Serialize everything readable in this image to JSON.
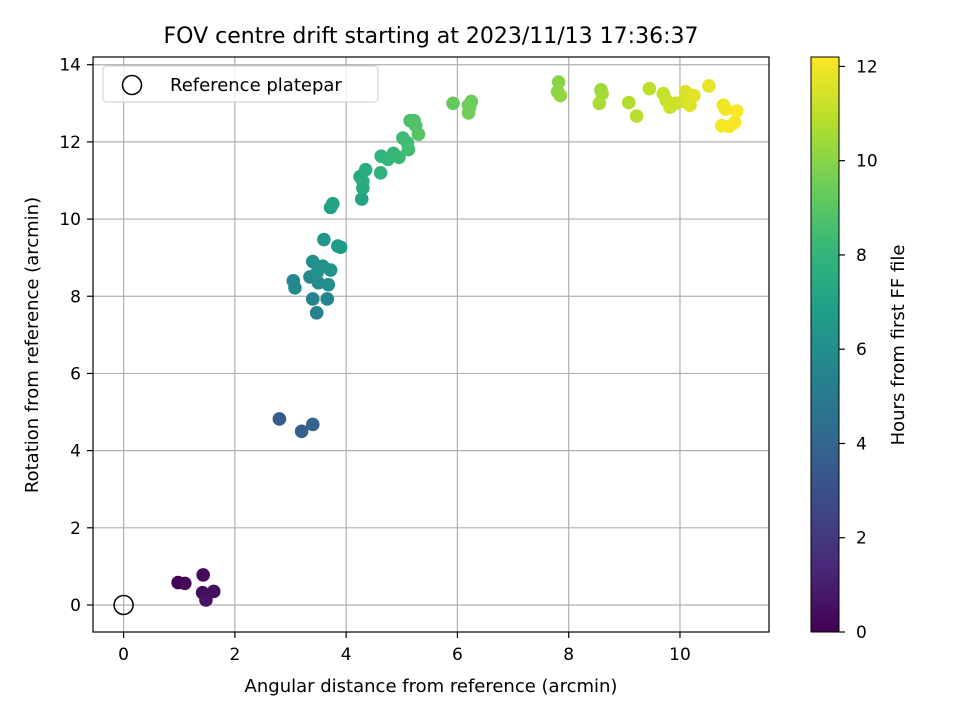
{
  "chart_data": {
    "type": "scatter",
    "title": "FOV centre drift starting at 2023/11/13 17:36:37",
    "xlabel": "Angular distance from reference (arcmin)",
    "ylabel": "Rotation from reference (arcmin)",
    "xlim": [
      -0.55,
      11.6
    ],
    "ylim": [
      -0.7,
      14.2
    ],
    "x_ticks": [
      0,
      2,
      4,
      6,
      8,
      10
    ],
    "y_ticks": [
      0,
      2,
      4,
      6,
      8,
      10,
      12,
      14
    ],
    "grid": true,
    "legend": {
      "placement": "top-left",
      "entries": [
        "Reference platepar"
      ]
    },
    "reference_point": {
      "x": 0,
      "y": 0,
      "label": "Reference platepar"
    },
    "colorbar": {
      "label": "Hours from first FF file",
      "colormap": "viridis",
      "range": [
        0,
        12.2
      ],
      "ticks": [
        0,
        2,
        4,
        6,
        8,
        10,
        12
      ]
    },
    "series": [
      {
        "points": [
          {
            "x": 0.98,
            "y": 0.58,
            "t": 0.1
          },
          {
            "x": 1.1,
            "y": 0.56,
            "t": 0.2
          },
          {
            "x": 1.43,
            "y": 0.78,
            "t": 0.3
          },
          {
            "x": 1.42,
            "y": 0.32,
            "t": 0.4
          },
          {
            "x": 1.62,
            "y": 0.35,
            "t": 0.5
          },
          {
            "x": 1.48,
            "y": 0.13,
            "t": 0.6
          },
          {
            "x": 2.8,
            "y": 4.82,
            "t": 3.5
          },
          {
            "x": 3.2,
            "y": 4.5,
            "t": 3.7
          },
          {
            "x": 3.4,
            "y": 4.68,
            "t": 3.9
          },
          {
            "x": 3.47,
            "y": 7.57,
            "t": 5.3
          },
          {
            "x": 3.4,
            "y": 7.93,
            "t": 5.4
          },
          {
            "x": 3.66,
            "y": 7.93,
            "t": 5.5
          },
          {
            "x": 3.05,
            "y": 8.4,
            "t": 5.6
          },
          {
            "x": 3.08,
            "y": 8.22,
            "t": 5.7
          },
          {
            "x": 3.35,
            "y": 8.5,
            "t": 5.8
          },
          {
            "x": 3.5,
            "y": 8.35,
            "t": 5.9
          },
          {
            "x": 3.68,
            "y": 8.3,
            "t": 6.0
          },
          {
            "x": 3.4,
            "y": 8.9,
            "t": 6.0
          },
          {
            "x": 3.58,
            "y": 8.78,
            "t": 6.1
          },
          {
            "x": 3.72,
            "y": 8.68,
            "t": 6.2
          },
          {
            "x": 3.48,
            "y": 8.62,
            "t": 6.2
          },
          {
            "x": 3.6,
            "y": 9.47,
            "t": 6.5
          },
          {
            "x": 3.85,
            "y": 9.3,
            "t": 6.6
          },
          {
            "x": 3.9,
            "y": 9.27,
            "t": 6.7
          },
          {
            "x": 3.72,
            "y": 10.3,
            "t": 6.9
          },
          {
            "x": 3.76,
            "y": 10.4,
            "t": 7.0
          },
          {
            "x": 4.28,
            "y": 10.52,
            "t": 7.1
          },
          {
            "x": 4.25,
            "y": 11.1,
            "t": 7.3
          },
          {
            "x": 4.3,
            "y": 10.8,
            "t": 7.4
          },
          {
            "x": 4.3,
            "y": 10.98,
            "t": 7.5
          },
          {
            "x": 4.35,
            "y": 11.28,
            "t": 7.6
          },
          {
            "x": 4.62,
            "y": 11.2,
            "t": 7.8
          },
          {
            "x": 4.63,
            "y": 11.63,
            "t": 7.9
          },
          {
            "x": 4.75,
            "y": 11.55,
            "t": 8.0
          },
          {
            "x": 4.85,
            "y": 11.7,
            "t": 8.1
          },
          {
            "x": 4.95,
            "y": 11.6,
            "t": 8.2
          },
          {
            "x": 5.02,
            "y": 12.1,
            "t": 8.3
          },
          {
            "x": 5.1,
            "y": 11.98,
            "t": 8.4
          },
          {
            "x": 5.12,
            "y": 11.8,
            "t": 8.5
          },
          {
            "x": 5.15,
            "y": 12.55,
            "t": 8.6
          },
          {
            "x": 5.22,
            "y": 12.55,
            "t": 8.7
          },
          {
            "x": 5.25,
            "y": 12.42,
            "t": 8.8
          },
          {
            "x": 5.3,
            "y": 12.2,
            "t": 8.9
          },
          {
            "x": 5.92,
            "y": 13.0,
            "t": 9.2
          },
          {
            "x": 6.2,
            "y": 12.95,
            "t": 9.3
          },
          {
            "x": 6.25,
            "y": 13.05,
            "t": 9.4
          },
          {
            "x": 6.2,
            "y": 12.75,
            "t": 9.5
          },
          {
            "x": 6.22,
            "y": 12.9,
            "t": 9.5
          },
          {
            "x": 7.82,
            "y": 13.55,
            "t": 10.0
          },
          {
            "x": 7.8,
            "y": 13.3,
            "t": 10.1
          },
          {
            "x": 7.85,
            "y": 13.2,
            "t": 10.2
          },
          {
            "x": 8.58,
            "y": 13.35,
            "t": 10.4
          },
          {
            "x": 8.6,
            "y": 13.25,
            "t": 10.5
          },
          {
            "x": 8.55,
            "y": 13.0,
            "t": 10.6
          },
          {
            "x": 9.08,
            "y": 13.02,
            "t": 10.8
          },
          {
            "x": 9.22,
            "y": 12.67,
            "t": 10.9
          },
          {
            "x": 9.45,
            "y": 13.38,
            "t": 11.0
          },
          {
            "x": 9.7,
            "y": 13.25,
            "t": 11.1
          },
          {
            "x": 9.75,
            "y": 13.08,
            "t": 11.2
          },
          {
            "x": 9.82,
            "y": 12.9,
            "t": 11.3
          },
          {
            "x": 9.92,
            "y": 13.0,
            "t": 11.3
          },
          {
            "x": 10.05,
            "y": 13.05,
            "t": 11.4
          },
          {
            "x": 10.1,
            "y": 13.3,
            "t": 11.5
          },
          {
            "x": 10.18,
            "y": 12.95,
            "t": 11.6
          },
          {
            "x": 10.25,
            "y": 13.2,
            "t": 11.7
          },
          {
            "x": 10.52,
            "y": 13.45,
            "t": 11.8
          },
          {
            "x": 10.78,
            "y": 12.95,
            "t": 11.9
          },
          {
            "x": 10.82,
            "y": 12.85,
            "t": 12.0
          },
          {
            "x": 10.75,
            "y": 12.42,
            "t": 12.0
          },
          {
            "x": 10.88,
            "y": 12.4,
            "t": 12.1
          },
          {
            "x": 10.98,
            "y": 12.5,
            "t": 12.1
          },
          {
            "x": 11.02,
            "y": 12.8,
            "t": 12.2
          }
        ]
      }
    ]
  }
}
